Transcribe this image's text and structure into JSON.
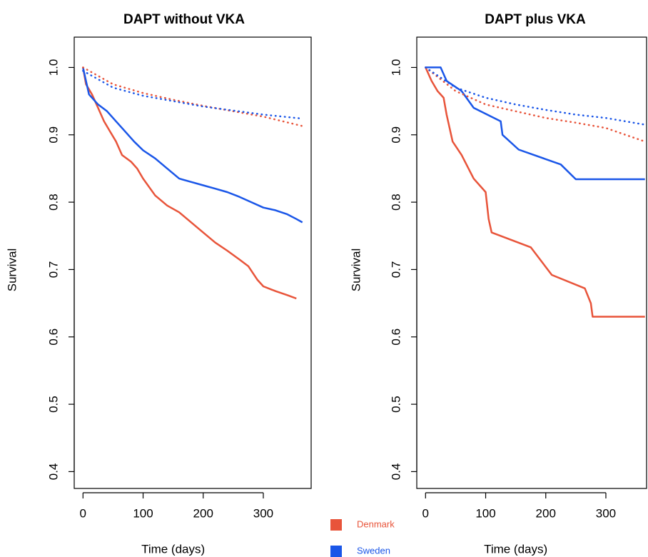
{
  "chart_data": [
    {
      "type": "line",
      "title": "DAPT without VKA",
      "xlabel": "Time (days)",
      "ylabel": "Survival",
      "xlim": [
        -14.6,
        379.6
      ],
      "ylim": [
        0.375,
        1.045
      ],
      "xticks": [
        0,
        100,
        200,
        300
      ],
      "yticks": [
        0.4,
        0.5,
        0.6,
        0.7,
        0.8,
        0.9,
        {
          "value": 1.0,
          "label": "1.0"
        }
      ],
      "legend": "bottom-right",
      "series": [
        {
          "name": "Denmark",
          "color": "#e8543a",
          "style": "solid",
          "x": [
            0,
            5,
            15,
            25,
            35,
            45,
            55,
            65,
            80,
            90,
            100,
            120,
            140,
            160,
            180,
            200,
            220,
            240,
            260,
            275,
            290,
            300,
            320,
            340,
            355
          ],
          "values": [
            1.0,
            0.975,
            0.96,
            0.94,
            0.92,
            0.905,
            0.89,
            0.87,
            0.86,
            0.85,
            0.835,
            0.81,
            0.795,
            0.785,
            0.77,
            0.755,
            0.74,
            0.728,
            0.715,
            0.705,
            0.685,
            0.675,
            0.668,
            0.662,
            0.657
          ]
        },
        {
          "name": "Sweden",
          "color": "#1a56e8",
          "style": "solid",
          "x": [
            0,
            10,
            25,
            40,
            55,
            70,
            85,
            100,
            120,
            140,
            160,
            180,
            200,
            220,
            240,
            260,
            280,
            300,
            320,
            340,
            355,
            365
          ],
          "values": [
            1.0,
            0.96,
            0.945,
            0.935,
            0.92,
            0.905,
            0.89,
            0.877,
            0.865,
            0.85,
            0.835,
            0.83,
            0.825,
            0.82,
            0.815,
            0.808,
            0.8,
            0.792,
            0.788,
            0.782,
            0.775,
            0.77
          ]
        },
        {
          "color": "#e8543a",
          "style": "dotted",
          "x": [
            0,
            50,
            100,
            150,
            200,
            250,
            300,
            365
          ],
          "values": [
            1.0,
            0.975,
            0.962,
            0.952,
            0.943,
            0.935,
            0.927,
            0.913
          ]
        },
        {
          "color": "#1a56e8",
          "style": "dotted",
          "x": [
            0,
            50,
            100,
            150,
            200,
            250,
            300,
            365
          ],
          "values": [
            0.995,
            0.97,
            0.958,
            0.95,
            0.942,
            0.936,
            0.93,
            0.924
          ]
        }
      ]
    },
    {
      "type": "line",
      "title": "DAPT plus VKA",
      "xlabel": "Time (days)",
      "ylabel": "Survival",
      "xlim": [
        -14.6,
        379.6
      ],
      "ylim": [
        0.375,
        1.045
      ],
      "xticks": [
        0,
        100,
        200,
        300
      ],
      "yticks": [
        0.4,
        0.5,
        0.6,
        0.7,
        0.8,
        0.9,
        {
          "value": 1.0,
          "label": "1.0"
        }
      ],
      "series": [
        {
          "color": "#e8543a",
          "style": "solid",
          "x": [
            0,
            10,
            20,
            30,
            35,
            45,
            60,
            80,
            100,
            105,
            110,
            175,
            210,
            265,
            275,
            278,
            365
          ],
          "values": [
            1.0,
            0.98,
            0.965,
            0.955,
            0.93,
            0.89,
            0.87,
            0.835,
            0.815,
            0.775,
            0.755,
            0.733,
            0.692,
            0.672,
            0.65,
            0.63,
            0.63
          ]
        },
        {
          "color": "#1a56e8",
          "style": "solid",
          "x": [
            0,
            25,
            35,
            60,
            80,
            125,
            128,
            155,
            225,
            250,
            365
          ],
          "values": [
            1.0,
            1.0,
            0.98,
            0.965,
            0.94,
            0.92,
            0.9,
            0.878,
            0.856,
            0.834,
            0.834
          ]
        },
        {
          "color": "#e8543a",
          "style": "dotted",
          "x": [
            0,
            50,
            100,
            150,
            200,
            250,
            300,
            365
          ],
          "values": [
            1.0,
            0.965,
            0.945,
            0.935,
            0.925,
            0.918,
            0.91,
            0.89
          ]
        },
        {
          "color": "#1a56e8",
          "style": "dotted",
          "x": [
            0,
            50,
            100,
            150,
            200,
            250,
            300,
            365
          ],
          "values": [
            1.0,
            0.97,
            0.955,
            0.945,
            0.937,
            0.93,
            0.925,
            0.915
          ]
        }
      ]
    }
  ]
}
